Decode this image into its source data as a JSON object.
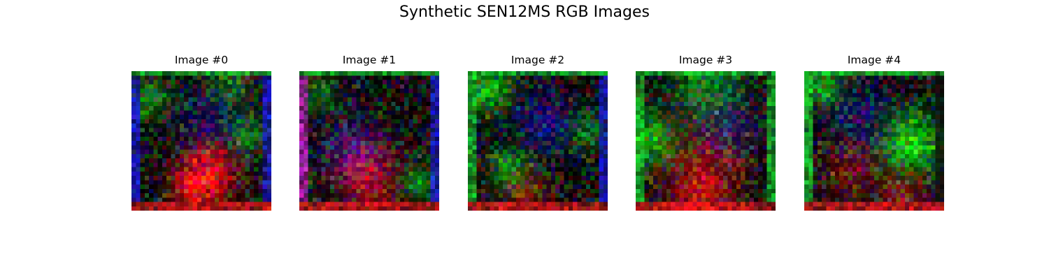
{
  "figure": {
    "title": "Synthetic SEN12MS RGB Images"
  },
  "images": [
    {
      "title": "Image #0",
      "dominant_color": "#e01c1c"
    },
    {
      "title": "Image #1",
      "dominant_color": "#8a2a7a"
    },
    {
      "title": "Image #2",
      "dominant_color": "#3a7a6a"
    },
    {
      "title": "Image #3",
      "dominant_color": "#2aa02a"
    },
    {
      "title": "Image #4",
      "dominant_color": "#3cc01c"
    }
  ]
}
